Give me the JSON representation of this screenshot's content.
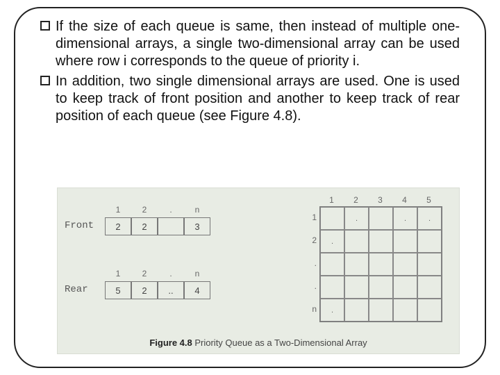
{
  "paragraphs": {
    "p1": "If the size of each queue is same, then instead of multiple one-dimensional arrays, a single two-dimensional array can be used where row i corresponds to the queue of priority i.",
    "p2": "In addition, two single dimensional arrays are used. One is used to keep track of front position and another to keep track of rear position of each queue (see Figure 4.8)."
  },
  "front": {
    "label": "Front",
    "headers": [
      "1",
      "2",
      ".",
      "n"
    ],
    "cells": [
      "2",
      "2",
      "",
      "3"
    ]
  },
  "rear": {
    "label": "Rear",
    "headers": [
      "1",
      "2",
      ".",
      "n"
    ],
    "cells": [
      "5",
      "2",
      "..",
      "4"
    ]
  },
  "grid": {
    "col_headers": [
      "1",
      "2",
      "3",
      "4",
      "5"
    ],
    "row_headers": [
      "1",
      "2",
      ".",
      ".",
      "n"
    ],
    "rows": [
      [
        "",
        ".",
        "",
        ".",
        "."
      ],
      [
        ".",
        "",
        "",
        "",
        ""
      ],
      [
        "",
        "",
        "",
        "",
        ""
      ],
      [
        "",
        "",
        "",
        "",
        ""
      ],
      [
        ".",
        "",
        "",
        "",
        ""
      ]
    ]
  },
  "caption_bold": "Figure 4.8",
  "caption_text": " Priority Queue as a Two-Dimensional Array"
}
